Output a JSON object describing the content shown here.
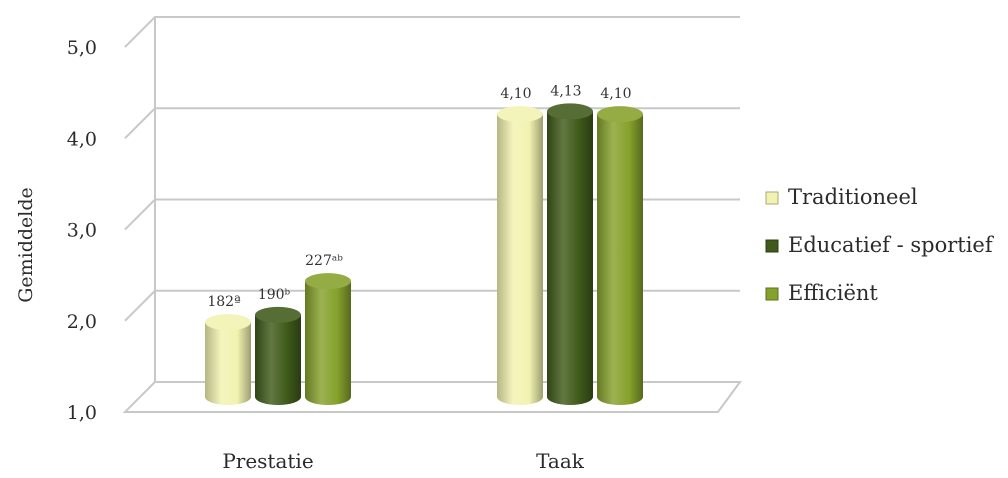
{
  "chart_data": {
    "type": "bar",
    "ylabel": "Gemiddelde",
    "xlabel": "",
    "ylim": [
      1.0,
      5.0
    ],
    "y_ticks": [
      "1,0",
      "2,0",
      "3,0",
      "4,0",
      "5,0"
    ],
    "y_tick_values": [
      1,
      2,
      3,
      4,
      5
    ],
    "categories": [
      "Prestatie",
      "Taak"
    ],
    "series": [
      {
        "name": "Traditioneel",
        "values": [
          1.82,
          4.1
        ],
        "labels": [
          "182ª",
          "4,10"
        ],
        "color": "#f1f3b0"
      },
      {
        "name": "Educatief - sportief",
        "values": [
          1.9,
          4.13
        ],
        "labels": [
          "190ᵇ",
          "4,13"
        ],
        "color": "#3f5a1a"
      },
      {
        "name": "Efficiënt",
        "values": [
          2.27,
          4.1
        ],
        "labels": [
          "227ᵃᵇ",
          "4,10"
        ],
        "color": "#86a12c"
      }
    ],
    "legend_position": "right",
    "grid": true
  }
}
